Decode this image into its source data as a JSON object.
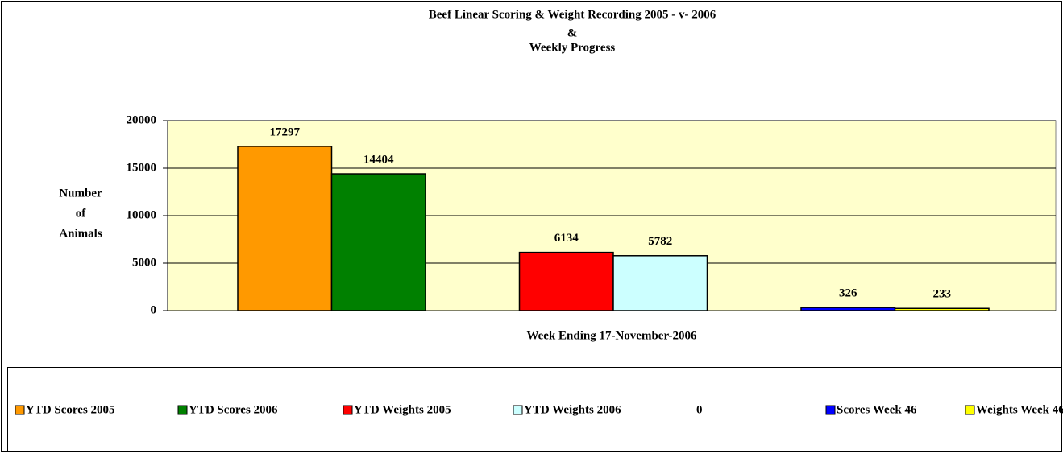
{
  "chart_data": {
    "type": "bar",
    "title": [
      "Beef Linear Scoring & Weight Recording 2005 - v- 2006",
      "&",
      "Weekly Progress"
    ],
    "y_label": [
      "Number",
      "of",
      "Animals"
    ],
    "x_label": "Week Ending 17-November-2006",
    "ylim": [
      0,
      20000
    ],
    "yticks": [
      0,
      5000,
      10000,
      15000,
      20000
    ],
    "grid": true,
    "plot_background": "#ffffcc",
    "legend": "bottom",
    "series": [
      {
        "name": "YTD Scores 2005",
        "color": "#ff9900",
        "values": [
          17297
        ]
      },
      {
        "name": "YTD Scores 2006",
        "color": "#008000",
        "values": [
          14404
        ]
      },
      {
        "name": "YTD Weights 2005",
        "color": "#ff0000",
        "values": [
          6134
        ]
      },
      {
        "name": "YTD Weights 2006",
        "color": "#ccffff",
        "values": [
          5782
        ]
      },
      {
        "name": "0",
        "color": null,
        "values": [
          null
        ]
      },
      {
        "name": "Scores Week 46",
        "color": "#0000ff",
        "values": [
          326
        ]
      },
      {
        "name": "Weights Week 46",
        "color": "#ffff00",
        "values": [
          233
        ]
      }
    ]
  }
}
